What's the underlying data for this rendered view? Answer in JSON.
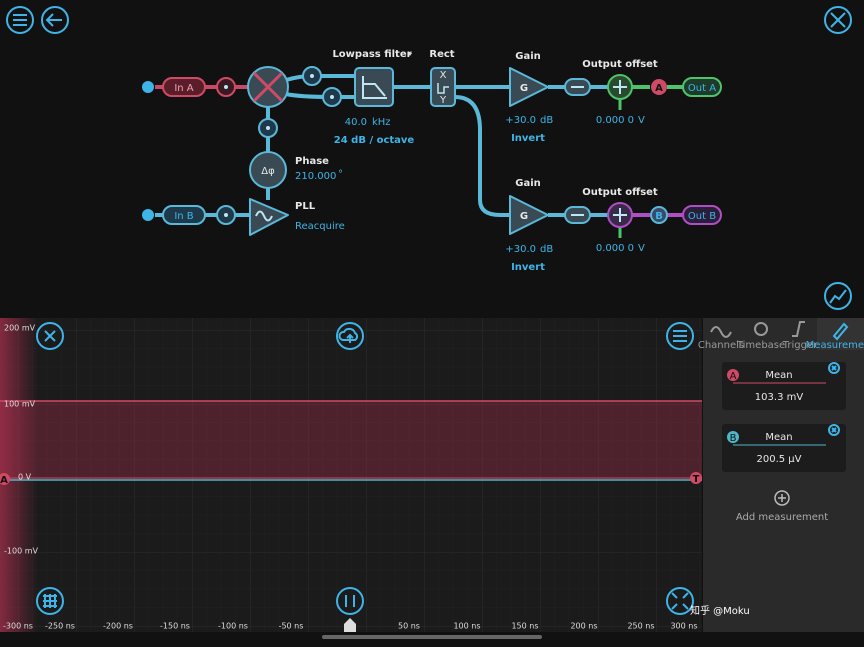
{
  "diagram": {
    "inputs": [
      "In A",
      "In B"
    ],
    "mixer_phase_symbol": "Δφ",
    "lowpass": {
      "title": "Lowpass filter",
      "frequency": "40.0",
      "frequency_unit": "kHz",
      "slope": "24 dB / octave"
    },
    "rect": {
      "title": "Rect",
      "top": "X",
      "bottom": "Y"
    },
    "phase": {
      "title": "Phase",
      "value": "210.000",
      "unit": "°"
    },
    "pll": {
      "title": "PLL",
      "action": "Reacquire"
    },
    "channels": [
      {
        "gain_title": "Gain",
        "gain_symbol": "G",
        "gain_value": "+30.0",
        "gain_unit": "dB",
        "invert": "Invert",
        "offset_title": "Output offset",
        "offset_value": "0.000 0",
        "offset_unit": "V",
        "badge": "A",
        "output": "Out A"
      },
      {
        "gain_title": "Gain",
        "gain_symbol": "G",
        "gain_value": "+30.0",
        "gain_unit": "dB",
        "invert": "Invert",
        "offset_title": "Output offset",
        "offset_value": "0.000 0",
        "offset_unit": "V",
        "badge": "B",
        "output": "Out B"
      }
    ]
  },
  "plot": {
    "y_labels": [
      "200 mV",
      "100 mV",
      "0 V",
      "-100 mV"
    ],
    "x_labels": [
      "-300 ns",
      "-250 ns",
      "-200 ns",
      "-150 ns",
      "-100 ns",
      "-50 ns",
      "50 ns",
      "100 ns",
      "150 ns",
      "200 ns",
      "250 ns",
      "300 ns"
    ],
    "channel_marker": "A",
    "trigger_marker": "T"
  },
  "sidebar": {
    "tabs": [
      "Channels",
      "Timebase",
      "Trigger",
      "Measurement"
    ],
    "measurements": [
      {
        "channel": "A",
        "label": "Mean",
        "value": "103.3 mV"
      },
      {
        "channel": "B",
        "label": "Mean",
        "value": "200.5 µV"
      }
    ],
    "add": "Add measurement"
  },
  "watermark": "知乎 @Moku"
}
